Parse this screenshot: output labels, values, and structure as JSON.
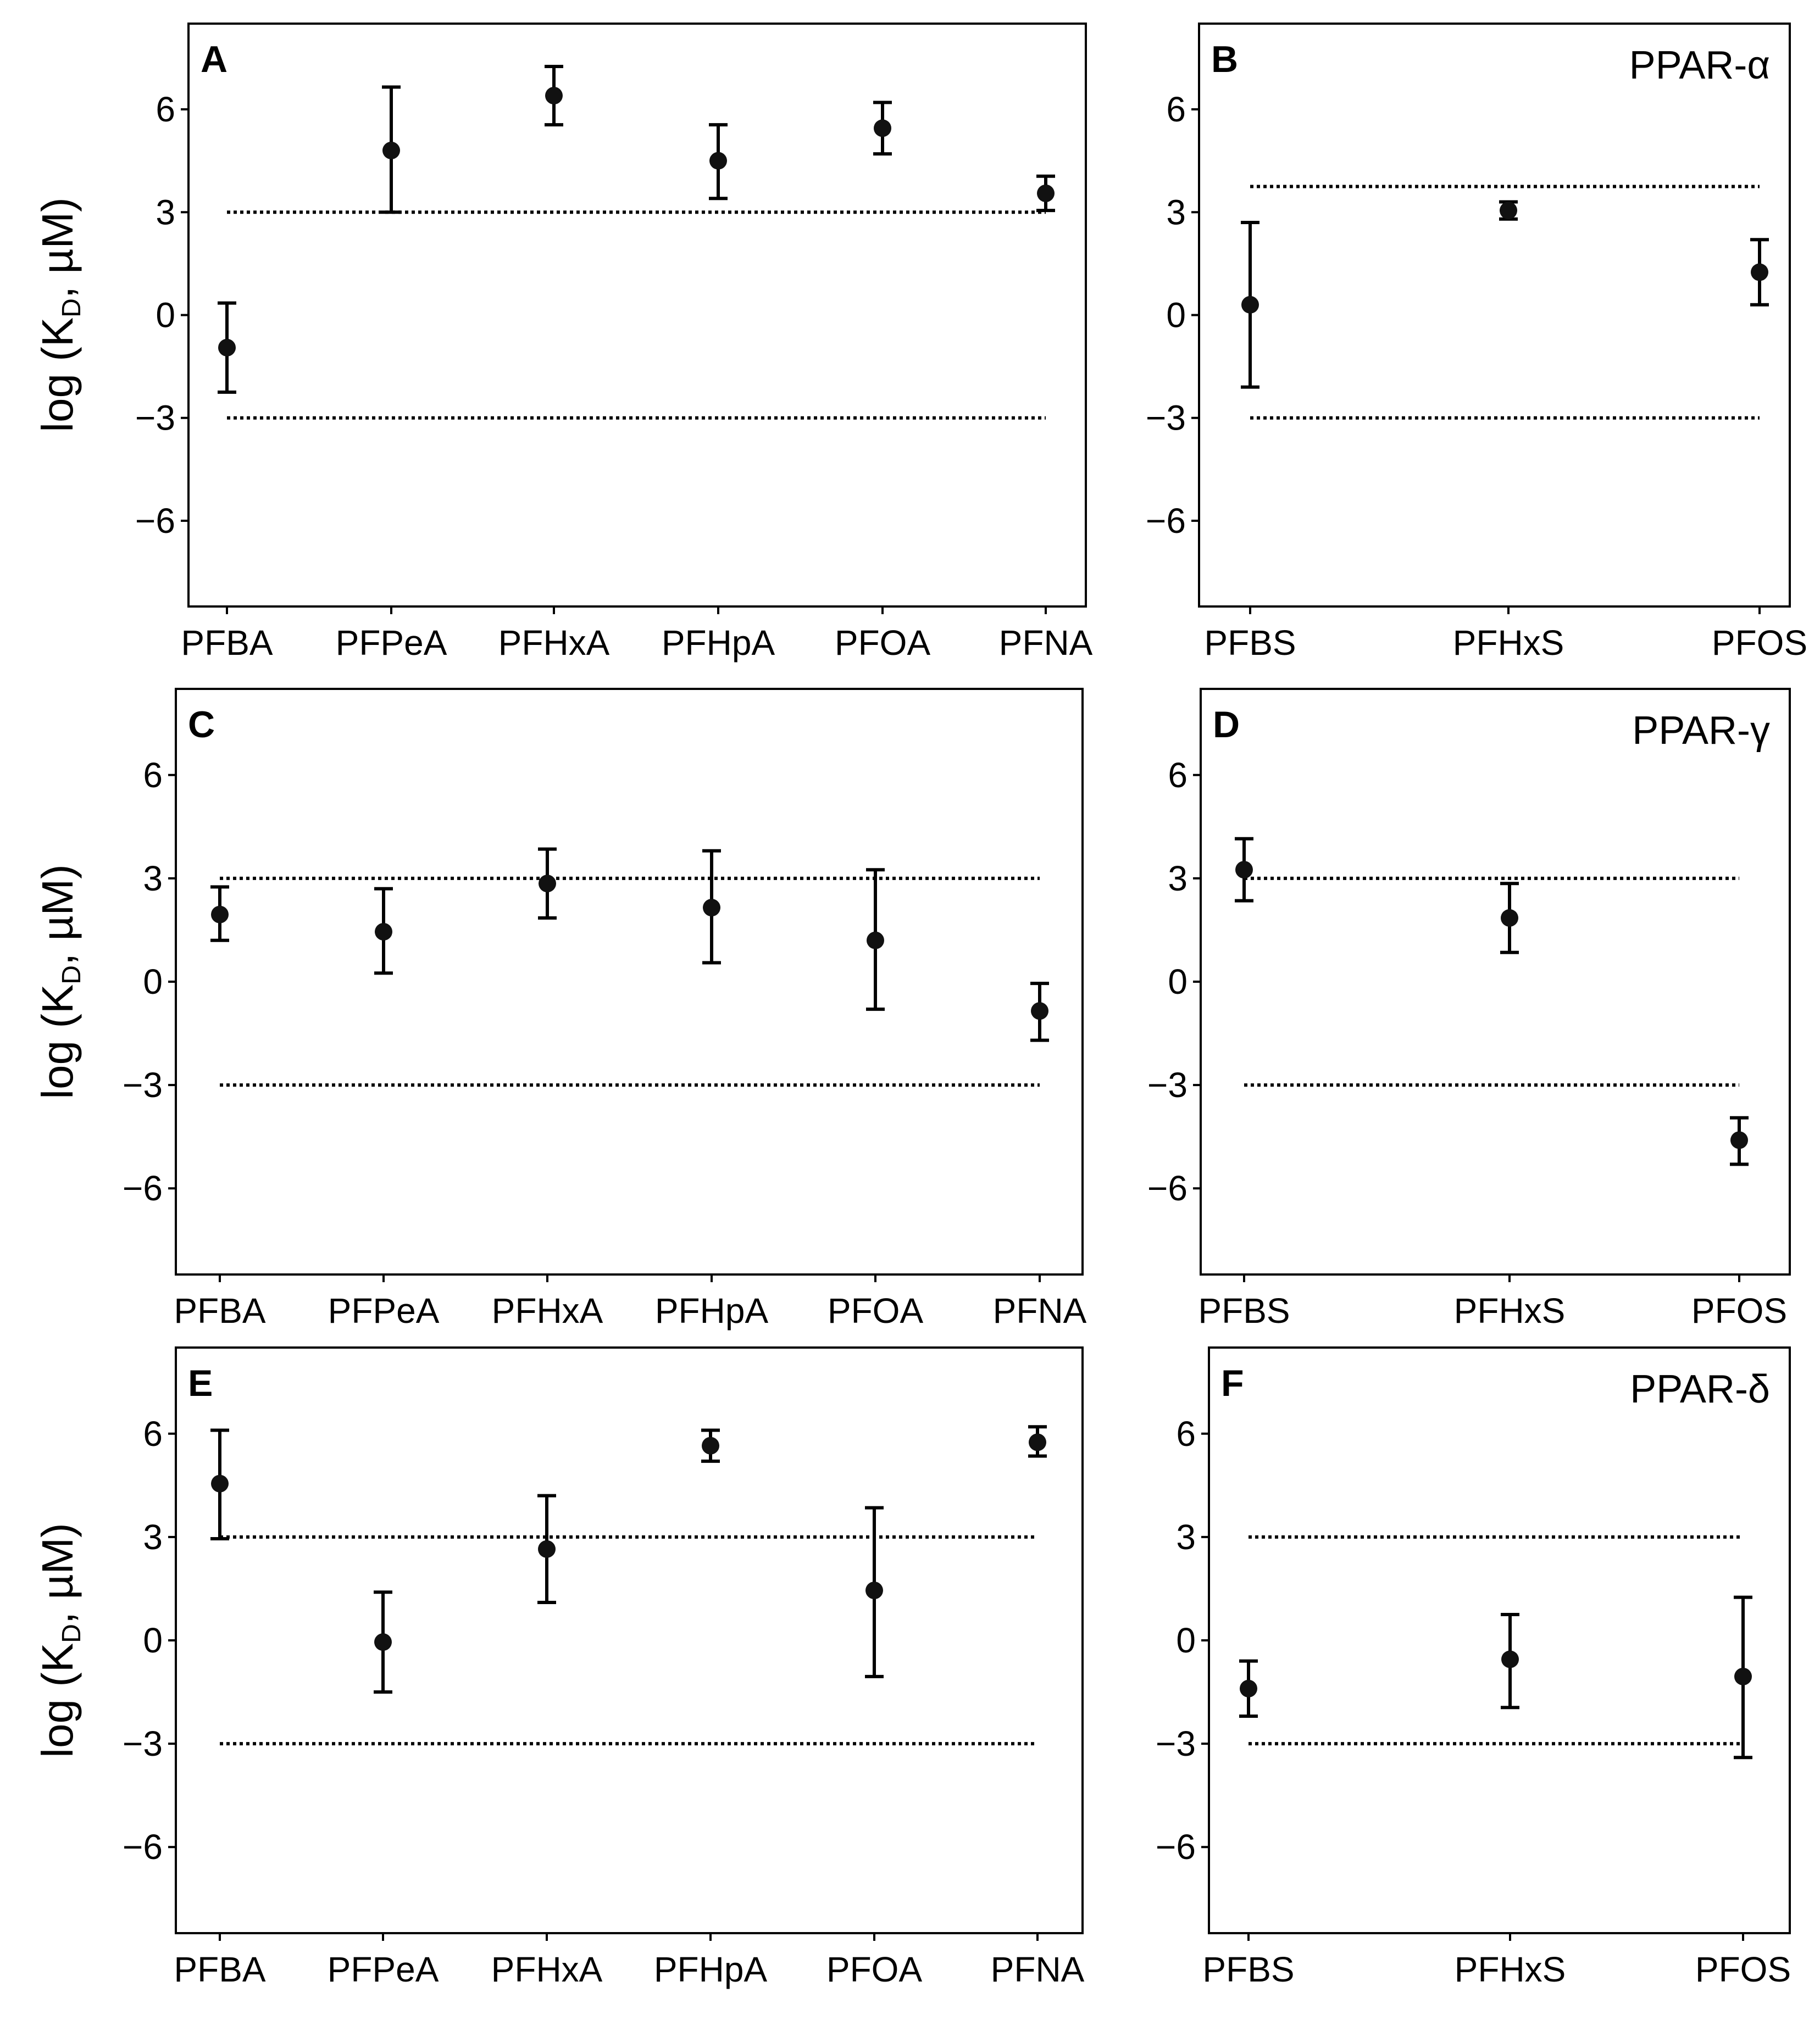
{
  "figure_y_label": {
    "prefix": "log (K",
    "subscript": "D",
    "suffix": ", µM)"
  },
  "chart_data": [
    {
      "panel": "A",
      "type": "scatter",
      "title": "",
      "ylabel": "log (KD, µM)",
      "ylim": [
        -8.5,
        8.5
      ],
      "yticks": [
        6,
        3,
        0,
        -3,
        -6
      ],
      "ytick_labels": [
        "6",
        "3",
        "0",
        "−3",
        "−6"
      ],
      "categories": [
        "PFBA",
        "PFPeA",
        "PFHxA",
        "PFHpA",
        "PFOA",
        "PFNA"
      ],
      "values": [
        -0.95,
        4.8,
        6.4,
        4.5,
        5.45,
        3.55
      ],
      "err_low": [
        -2.25,
        3.0,
        5.55,
        3.4,
        4.7,
        3.05
      ],
      "err_high": [
        0.35,
        6.65,
        7.25,
        5.55,
        6.2,
        4.05
      ],
      "thresholds": [
        3,
        -3
      ]
    },
    {
      "panel": "B",
      "type": "scatter",
      "title": "PPAR-α",
      "ylabel": "",
      "ylim": [
        -8.5,
        8.5
      ],
      "yticks": [
        6,
        3,
        0,
        -3,
        -6
      ],
      "ytick_labels": [
        "6",
        "3",
        "0",
        "−3",
        "−6"
      ],
      "categories": [
        "PFBS",
        "PFHxS",
        "PFOS"
      ],
      "values": [
        0.3,
        3.05,
        1.25
      ],
      "err_low": [
        -2.1,
        2.8,
        0.3
      ],
      "err_high": [
        2.7,
        3.3,
        2.2
      ],
      "thresholds": [
        3.75,
        -3
      ]
    },
    {
      "panel": "C",
      "type": "scatter",
      "title": "",
      "ylabel": "log (KD, µM)",
      "ylim": [
        -8.5,
        8.5
      ],
      "yticks": [
        6,
        3,
        0,
        -3,
        -6
      ],
      "ytick_labels": [
        "6",
        "3",
        "0",
        "−3",
        "−6"
      ],
      "categories": [
        "PFBA",
        "PFPeA",
        "PFHxA",
        "PFHpA",
        "PFOA",
        "PFNA"
      ],
      "values": [
        1.95,
        1.45,
        2.85,
        2.15,
        1.2,
        -0.85
      ],
      "err_low": [
        1.2,
        0.25,
        1.85,
        0.55,
        -0.8,
        -1.7
      ],
      "err_high": [
        2.75,
        2.7,
        3.85,
        3.8,
        3.25,
        -0.05
      ],
      "thresholds": [
        3,
        -3
      ]
    },
    {
      "panel": "D",
      "type": "scatter",
      "title": "PPAR-γ",
      "ylabel": "",
      "ylim": [
        -8.5,
        8.5
      ],
      "yticks": [
        6,
        3,
        0,
        -3,
        -6
      ],
      "ytick_labels": [
        "6",
        "3",
        "0",
        "−3",
        "−6"
      ],
      "categories": [
        "PFBS",
        "PFHxS",
        "PFOS"
      ],
      "values": [
        3.25,
        1.85,
        -4.6
      ],
      "err_low": [
        2.35,
        0.85,
        -5.3
      ],
      "err_high": [
        4.15,
        2.85,
        -3.95
      ],
      "thresholds": [
        3,
        -3
      ]
    },
    {
      "panel": "E",
      "type": "scatter",
      "title": "",
      "ylabel": "log (KD, µM)",
      "ylim": [
        -8.5,
        8.5
      ],
      "yticks": [
        6,
        3,
        0,
        -3,
        -6
      ],
      "ytick_labels": [
        "6",
        "3",
        "0",
        "−3",
        "−6"
      ],
      "categories": [
        "PFBA",
        "PFPeA",
        "PFHxA",
        "PFHpA",
        "PFOA",
        "PFNA"
      ],
      "values": [
        4.55,
        -0.05,
        2.65,
        5.65,
        1.45,
        5.75
      ],
      "err_low": [
        2.95,
        -1.5,
        1.1,
        5.2,
        -1.05,
        5.35
      ],
      "err_high": [
        6.1,
        1.4,
        4.2,
        6.1,
        3.85,
        6.2
      ],
      "thresholds": [
        3,
        -3
      ]
    },
    {
      "panel": "F",
      "type": "scatter",
      "title": "PPAR-δ",
      "ylabel": "",
      "ylim": [
        -8.5,
        8.5
      ],
      "yticks": [
        6,
        3,
        0,
        -3,
        -6
      ],
      "ytick_labels": [
        "6",
        "3",
        "0",
        "−3",
        "−6"
      ],
      "categories": [
        "PFBS",
        "PFHxS",
        "PFOS"
      ],
      "values": [
        -1.4,
        -0.55,
        -1.05
      ],
      "err_low": [
        -2.2,
        -1.95,
        -3.4
      ],
      "err_high": [
        -0.6,
        0.75,
        1.25
      ],
      "thresholds": [
        3,
        -3
      ]
    }
  ]
}
